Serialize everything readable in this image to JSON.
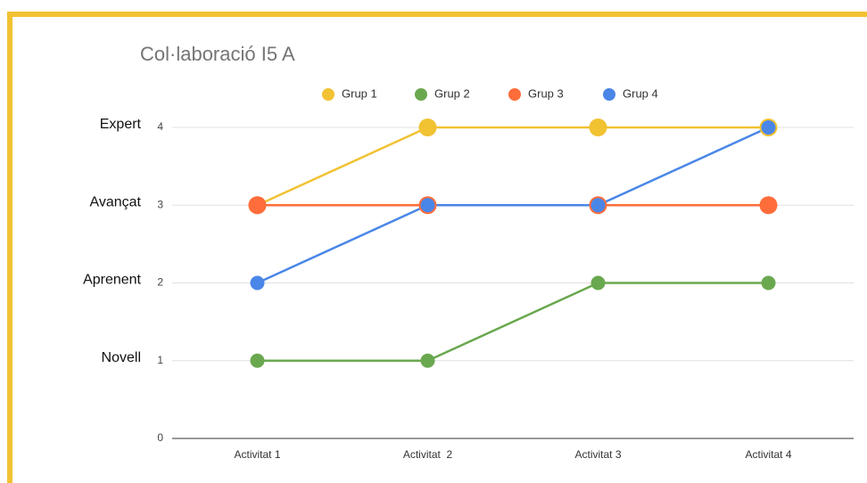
{
  "chart_data": {
    "type": "line",
    "title": "Col·laboració I5 A",
    "categories": [
      "Activitat 1",
      "Activitat  2",
      "Activitat 3",
      "Activitat 4"
    ],
    "series": [
      {
        "name": "Grup 1",
        "color": "#f1c232",
        "values": [
          3,
          4,
          4,
          4
        ]
      },
      {
        "name": "Grup 2",
        "color": "#6aa84f",
        "values": [
          1,
          1,
          2,
          2
        ]
      },
      {
        "name": "Grup 3",
        "color": "#ff6d3b",
        "values": [
          3,
          3,
          3,
          3
        ]
      },
      {
        "name": "Grup 4",
        "color": "#4a86e8",
        "values": [
          2,
          3,
          3,
          4
        ]
      }
    ],
    "ylim": [
      0,
      4
    ],
    "yticks": [
      0,
      1,
      2,
      3,
      4
    ],
    "grid": true,
    "legend": "top",
    "y_level_labels": [
      {
        "value": 1,
        "label": "Novell"
      },
      {
        "value": 2,
        "label": "Aprenent"
      },
      {
        "value": 3,
        "label": "Avançat"
      },
      {
        "value": 4,
        "label": "Expert"
      }
    ]
  }
}
